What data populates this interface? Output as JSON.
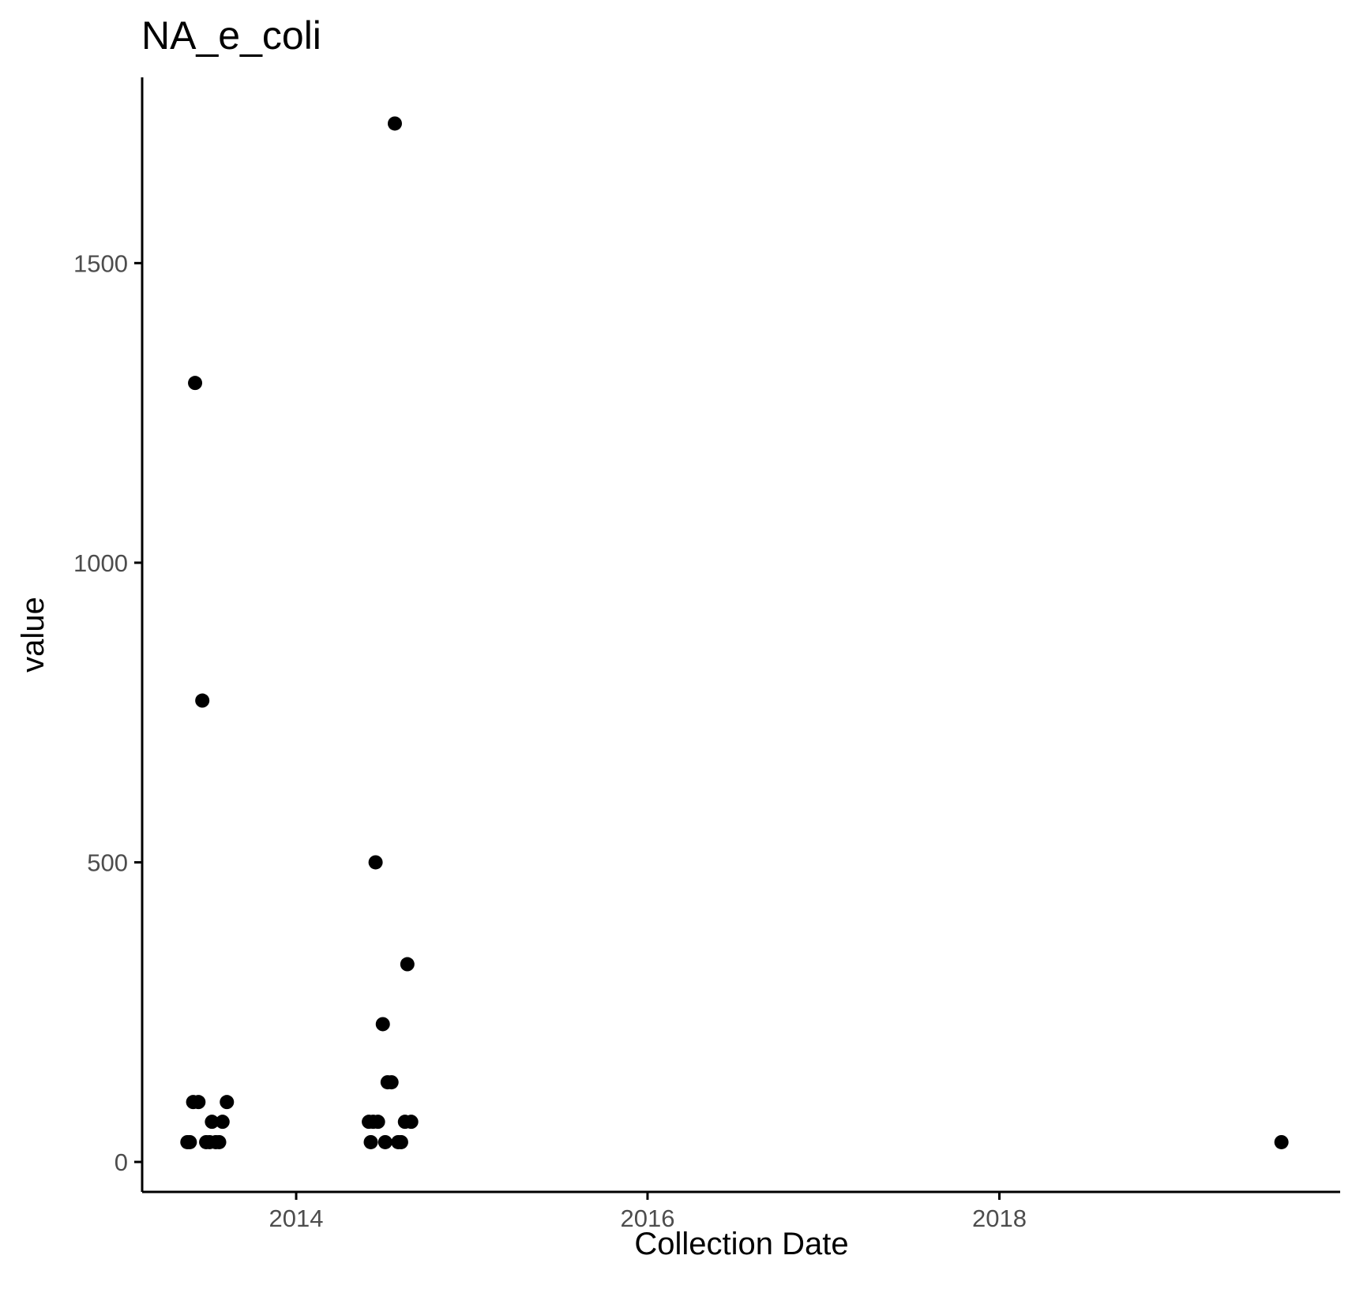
{
  "chart_data": {
    "type": "scatter",
    "title": "NA_e_coli",
    "xlabel": "Collection Date",
    "ylabel": "value",
    "x_axis_type": "date",
    "xlim": [
      "2013-02-15",
      "2019-12-10"
    ],
    "ylim": [
      -50,
      1810
    ],
    "x_ticks": [
      {
        "label": "2014",
        "value": "2014-01-01"
      },
      {
        "label": "2016",
        "value": "2016-01-01"
      },
      {
        "label": "2018",
        "value": "2018-01-01"
      }
    ],
    "y_ticks": [
      {
        "label": "0",
        "value": 0
      },
      {
        "label": "500",
        "value": 500
      },
      {
        "label": "1000",
        "value": 1000
      },
      {
        "label": "1500",
        "value": 1500
      }
    ],
    "grid": false,
    "legend": "none",
    "point_color": "#000000",
    "series": [
      {
        "points": [
          {
            "x": "2013-05-20",
            "y": 33
          },
          {
            "x": "2013-05-25",
            "y": 33
          },
          {
            "x": "2013-06-01",
            "y": 100
          },
          {
            "x": "2013-06-05",
            "y": 1300
          },
          {
            "x": "2013-06-12",
            "y": 100
          },
          {
            "x": "2013-06-20",
            "y": 770
          },
          {
            "x": "2013-06-28",
            "y": 33
          },
          {
            "x": "2013-07-05",
            "y": 33
          },
          {
            "x": "2013-07-10",
            "y": 67
          },
          {
            "x": "2013-07-18",
            "y": 33
          },
          {
            "x": "2013-07-25",
            "y": 33
          },
          {
            "x": "2013-08-01",
            "y": 67
          },
          {
            "x": "2013-08-10",
            "y": 100
          },
          {
            "x": "2014-06-01",
            "y": 67
          },
          {
            "x": "2014-06-05",
            "y": 33
          },
          {
            "x": "2014-06-10",
            "y": 67
          },
          {
            "x": "2014-06-15",
            "y": 500
          },
          {
            "x": "2014-06-20",
            "y": 67
          },
          {
            "x": "2014-06-30",
            "y": 230
          },
          {
            "x": "2014-07-05",
            "y": 33
          },
          {
            "x": "2014-07-10",
            "y": 133
          },
          {
            "x": "2014-07-18",
            "y": 133
          },
          {
            "x": "2014-07-25",
            "y": 1733
          },
          {
            "x": "2014-08-01",
            "y": 33
          },
          {
            "x": "2014-08-07",
            "y": 33
          },
          {
            "x": "2014-08-15",
            "y": 67
          },
          {
            "x": "2014-08-20",
            "y": 330
          },
          {
            "x": "2014-08-28",
            "y": 67
          },
          {
            "x": "2019-08-10",
            "y": 33
          }
        ]
      }
    ]
  }
}
